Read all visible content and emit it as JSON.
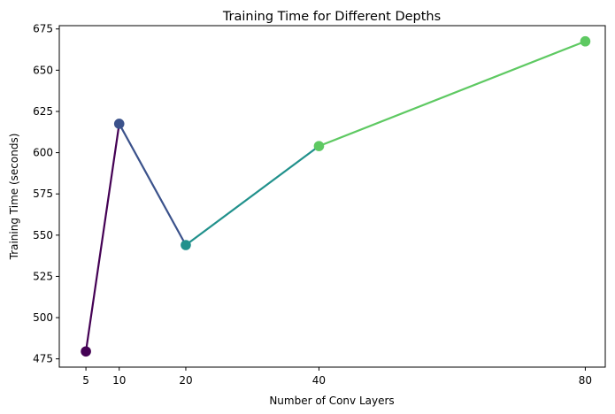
{
  "chart_data": {
    "type": "line",
    "title": "Training Time for Different Depths",
    "xlabel": "Number of Conv Layers",
    "ylabel": "Training Time (seconds)",
    "x": [
      5,
      10,
      20,
      40,
      80
    ],
    "y": [
      479.5,
      617.5,
      544.0,
      604.0,
      667.5
    ],
    "xticks": [
      "5",
      "10",
      "20",
      "40",
      "80"
    ],
    "yticks": [
      "475",
      "500",
      "525",
      "550",
      "575",
      "600",
      "625",
      "650",
      "675"
    ],
    "xlim": [
      1,
      83
    ],
    "ylim": [
      470,
      677
    ],
    "segment_colors": [
      "#440154",
      "#3b528b",
      "#21918c",
      "#5ec962"
    ],
    "point_colors": [
      "#440154",
      "#3b528b",
      "#21918c",
      "#5ec962",
      "#5ec962"
    ],
    "grid": false,
    "legend": "none"
  }
}
